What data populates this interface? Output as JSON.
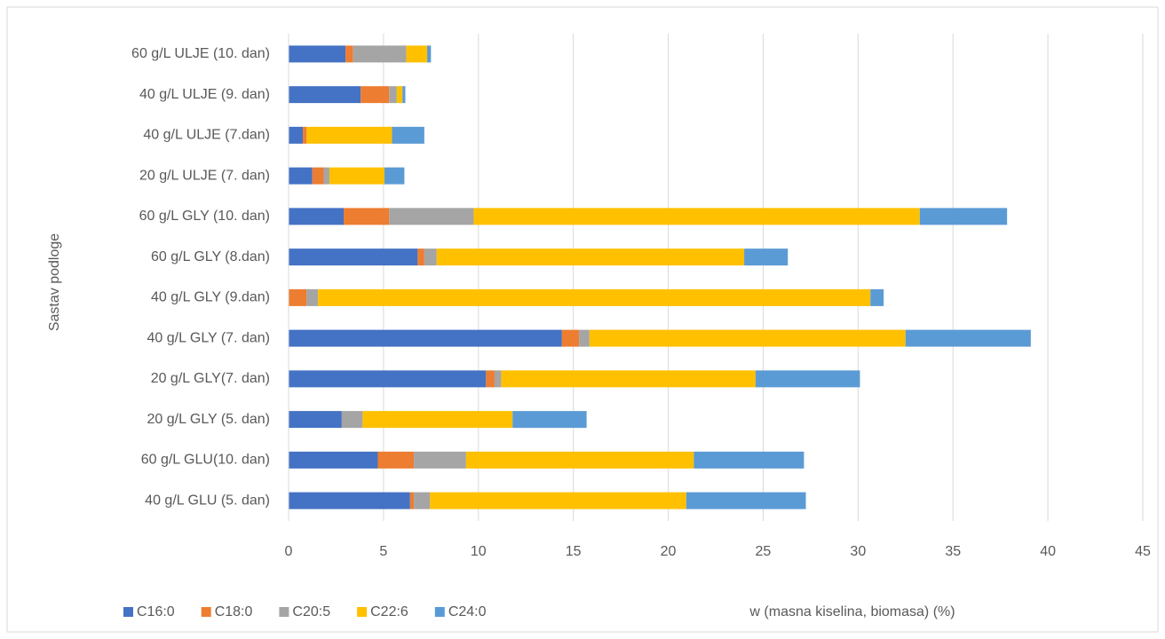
{
  "chart_data": {
    "type": "stacked-barh",
    "xlabel": "w (masna kiselina, biomasa) (%)",
    "ylabel": "Sastav podloge",
    "categories": [
      "60 g/L ULJE (10. dan)",
      "40 g/L ULJE (9. dan)",
      "40 g/L ULJE (7.dan)",
      "20 g/L ULJE (7. dan)",
      "60 g/L GLY (10. dan)",
      "60 g/L GLY (8.dan)",
      "40 g/L GLY (9.dan)",
      "40 g/L GLY (7. dan)",
      "20 g/L GLY(7. dan)",
      "20 g/L GLY (5. dan)",
      "60 g/L GLU(10. dan)",
      "40 g/L GLU (5. dan)"
    ],
    "series": [
      {
        "name": "C16:0",
        "color": "#4472c4",
        "values": [
          3.0,
          3.8,
          0.75,
          1.25,
          2.9,
          6.8,
          0,
          14.4,
          10.4,
          2.8,
          4.7,
          6.4
        ]
      },
      {
        "name": "C18:0",
        "color": "#ed7d31",
        "values": [
          0.4,
          1.5,
          0.2,
          0.6,
          2.4,
          0.35,
          0.95,
          0.9,
          0.45,
          0,
          1.9,
          0.2
        ]
      },
      {
        "name": "C20:5",
        "color": "#a5a5a5",
        "values": [
          2.8,
          0.4,
          0,
          0.3,
          4.45,
          0.65,
          0.6,
          0.55,
          0.35,
          1.1,
          2.75,
          0.85
        ]
      },
      {
        "name": "C22:6",
        "color": "#ffc000",
        "values": [
          1.1,
          0.3,
          4.5,
          2.9,
          23.5,
          16.2,
          29.1,
          16.65,
          13.4,
          7.9,
          12.0,
          13.5
        ]
      },
      {
        "name": "C24:0",
        "color": "#5b9bd5",
        "values": [
          0.2,
          0.15,
          1.7,
          1.05,
          4.6,
          2.3,
          0.7,
          6.6,
          5.5,
          3.9,
          5.8,
          6.3
        ]
      }
    ],
    "xlim": [
      0,
      45
    ],
    "xticks": [
      0,
      5,
      10,
      15,
      20,
      25,
      30,
      35,
      40,
      45
    ],
    "grid": true,
    "legend": "bottom"
  }
}
